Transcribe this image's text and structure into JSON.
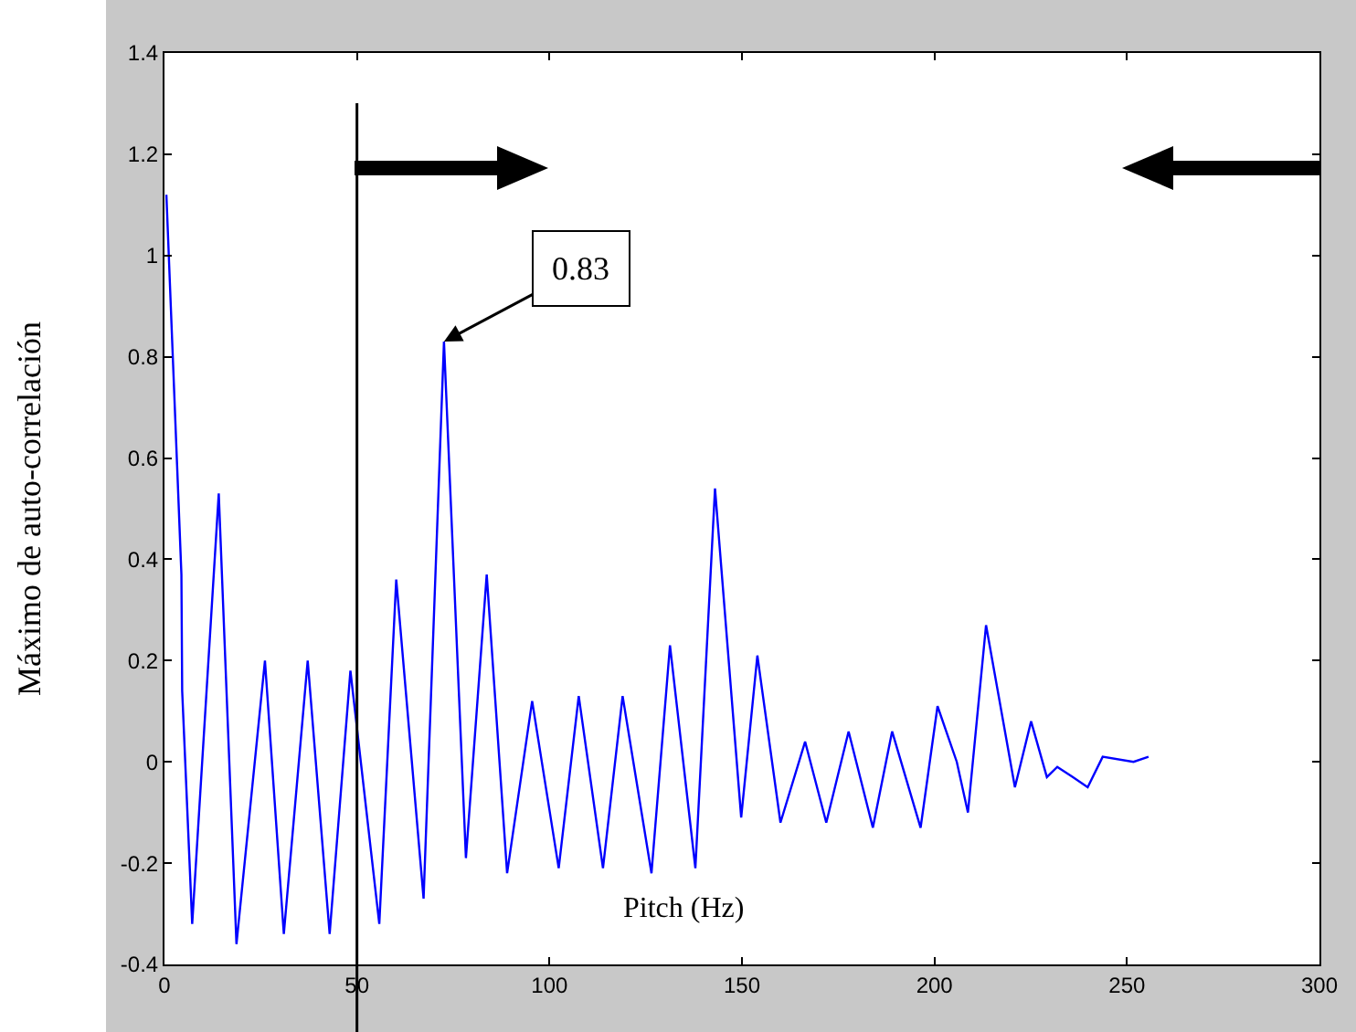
{
  "chart_data": {
    "type": "line",
    "xlabel": "Pitch (Hz)",
    "ylabel": "Máximo de auto-correlación",
    "x": [
      0.5,
      4.4,
      4.6,
      7.2,
      14.1,
      18.7,
      26.1,
      31.0,
      37.2,
      42.9,
      48.3,
      55.8,
      60.2,
      67.3,
      72.6,
      78.3,
      83.7,
      89.0,
      95.5,
      102.4,
      107.6,
      113.9,
      119.0,
      126.5,
      131.3,
      137.9,
      143.0,
      149.8,
      154.0,
      160.0,
      166.4,
      171.9,
      177.7,
      184.0,
      189.0,
      196.4,
      200.8,
      205.8,
      208.7,
      213.4,
      220.9,
      225.1,
      229.2,
      231.9,
      235.9,
      239.8,
      243.7,
      251.7,
      255.6
    ],
    "series": [
      {
        "color": "#0000ff",
        "values": [
          1.12,
          0.37,
          0.14,
          -0.32,
          0.53,
          -0.36,
          0.2,
          -0.34,
          0.2,
          -0.34,
          0.18,
          -0.32,
          0.36,
          -0.27,
          0.83,
          -0.19,
          0.37,
          -0.22,
          0.12,
          -0.21,
          0.13,
          -0.21,
          0.13,
          -0.22,
          0.23,
          -0.21,
          0.54,
          -0.11,
          0.21,
          -0.12,
          0.04,
          -0.12,
          0.06,
          -0.13,
          0.06,
          -0.13,
          0.11,
          0.0,
          -0.1,
          0.27,
          -0.05,
          0.08,
          -0.03,
          -0.01,
          -0.03,
          -0.05,
          0.01,
          0.0,
          0.01
        ]
      }
    ],
    "xlim": [
      0,
      300
    ],
    "xticks": [
      0,
      50,
      100,
      150,
      200,
      250,
      300
    ],
    "ylim": [
      -0.4,
      1.4
    ],
    "yticks": [
      -0.4,
      -0.2,
      0,
      0.2,
      0.4,
      0.6,
      0.8,
      1,
      1.2,
      1.4
    ],
    "ref_lines": [
      {
        "axis": "x",
        "value": 50,
        "color": "#000000"
      }
    ],
    "annotations": [
      {
        "text": "0.83",
        "x": 72.6,
        "y": 0.83
      }
    ],
    "grid": false,
    "legend": false,
    "marker": "none",
    "line_style": "solid"
  }
}
